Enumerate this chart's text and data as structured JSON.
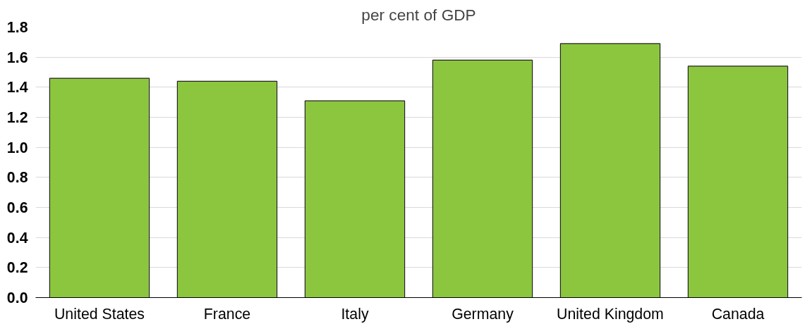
{
  "chart_data": {
    "type": "bar",
    "title": "per cent of GDP",
    "categories": [
      "United States",
      "France",
      "Italy",
      "Germany",
      "United Kingdom",
      "Canada"
    ],
    "values": [
      1.46,
      1.44,
      1.31,
      1.58,
      1.69,
      1.54
    ],
    "color": "#8cc63f",
    "ylim": [
      0,
      1.8
    ],
    "yticks": [
      {
        "value": 0,
        "label": "0.0"
      },
      0.2,
      0.4,
      0.6,
      0.8,
      {
        "value": 1,
        "label": "1.0"
      },
      1.2,
      1.4,
      1.6,
      1.8
    ],
    "grid": "y"
  }
}
